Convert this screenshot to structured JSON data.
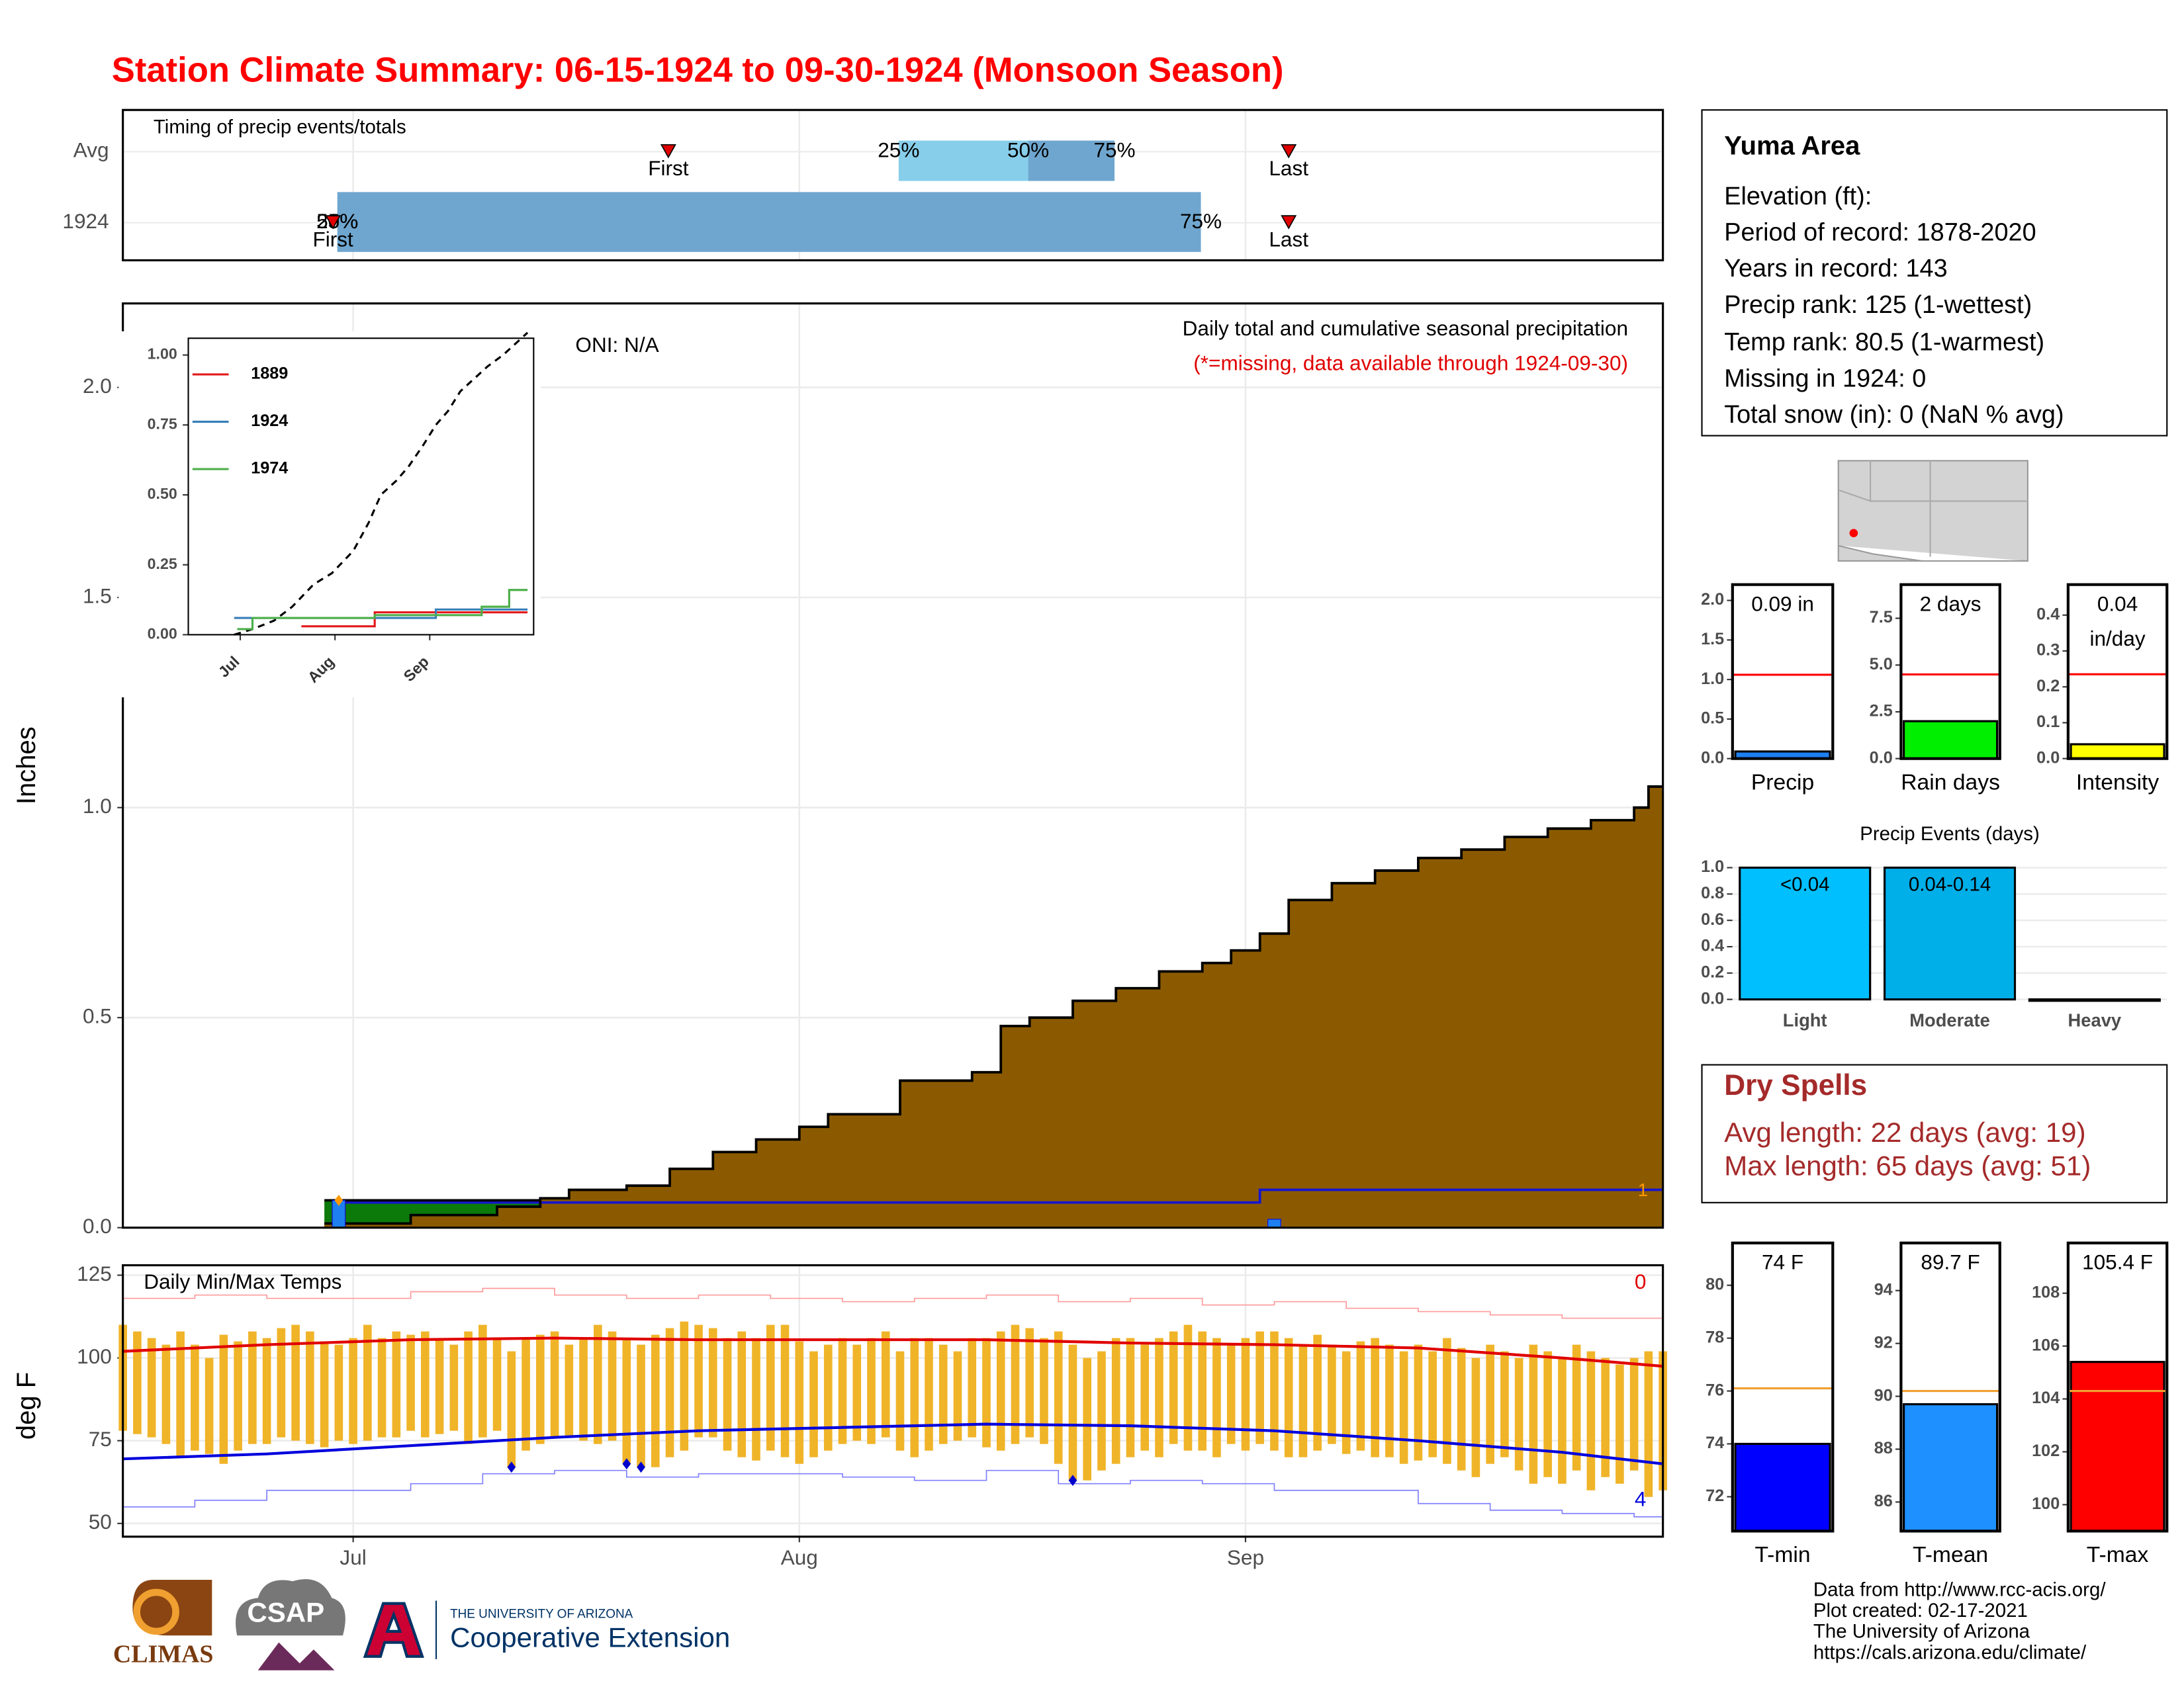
{
  "title": "Station Climate Summary: 06-15-1924 to 09-30-1924 (Monsoon Season)",
  "info": {
    "heading": "Yuma Area",
    "lines": [
      "Elevation (ft):",
      "Period of record: 1878-2020",
      "Years in record: 143",
      "Precip rank: 125 (1-wettest)",
      "Temp rank: 80.5 (1-warmest)",
      "Missing in 1924: 0",
      "Total snow (in): 0 (NaN % avg)"
    ]
  },
  "dry_spells": {
    "title": "Dry Spells",
    "lines": [
      "Avg length: 22 days (avg: 19)",
      "Max length: 65 days (avg: 51)"
    ]
  },
  "footer": {
    "logos": [
      "CLIMAS",
      "CSAP",
      "THE UNIVERSITY OF ARIZONA",
      "Cooperative Extension"
    ],
    "credits": [
      "Data from http://www.rcc-acis.org/",
      "Plot created: 02-17-2021",
      "The University of Arizona",
      "https://cals.arizona.edu/climate/"
    ]
  },
  "chart_data": [
    {
      "type": "range",
      "title": "Timing of precip events/totals",
      "q_labels": [
        "25%",
        "50%",
        "75%"
      ],
      "marker_labels": [
        "First",
        "Last"
      ],
      "colors": [
        "#87ceeb",
        "#6fa6cf"
      ],
      "marker_color": "#e00000",
      "rows": [
        {
          "label": "Avg",
          "q25": 53.9,
          "q50": 62.9,
          "q75": 68.9,
          "first": 37.9,
          "last": 81.0
        },
        {
          "label": "1924",
          "q25": 14.9,
          "q50": 14.9,
          "q75": 74.9,
          "first": 14.6,
          "last": 81.0
        }
      ]
    },
    {
      "type": "step-area",
      "ylabel": "Inches",
      "texts": [
        "ONI: N/A",
        "Daily total and cumulative seasonal precipitation"
      ],
      "note": "(*=missing, data available through 1924-09-30)",
      "note_color": "#e00000",
      "ylim": [
        0,
        2.2
      ],
      "yticks": [
        {
          "value": 0,
          "label": "0.0"
        },
        0.5,
        {
          "value": 1,
          "label": "1.0"
        },
        1.5,
        {
          "value": 2,
          "label": "2.0"
        }
      ],
      "grid": true,
      "series": [
        {
          "x": [
            15,
            79,
            107
          ],
          "values": [
            0.06,
            0.09,
            0.09
          ],
          "color": "#1515d0",
          "fill": "#dcdcdc"
        },
        {
          "x": [
            14,
            29
          ],
          "values": [
            0.065,
            0.065
          ],
          "color": "#000",
          "fill": "#0b7a0b"
        },
        {
          "x": [
            14,
            20,
            26,
            29,
            31,
            35,
            38,
            41,
            44,
            47,
            49,
            54,
            59,
            61,
            63,
            66,
            69,
            72,
            75,
            77,
            79,
            81,
            84,
            87,
            90,
            93,
            96,
            99,
            102,
            105,
            106,
            107
          ],
          "values": [
            0.01,
            0.03,
            0.05,
            0.07,
            0.09,
            0.1,
            0.14,
            0.18,
            0.21,
            0.24,
            0.27,
            0.35,
            0.37,
            0.48,
            0.5,
            0.54,
            0.57,
            0.61,
            0.63,
            0.66,
            0.7,
            0.78,
            0.82,
            0.85,
            0.88,
            0.9,
            0.93,
            0.95,
            0.97,
            1.0,
            1.05,
            1.05
          ],
          "color": "#000",
          "fill": "#8b5a00"
        }
      ],
      "bars": {
        "x": [
          15,
          80
        ],
        "values": [
          0.065,
          0.02
        ],
        "color": "#1e7ff0"
      },
      "points": {
        "x": [
          15
        ],
        "values": [
          0.065
        ],
        "color": "#ff9900"
      },
      "corner_label": {
        "text": "1",
        "color": "#ff9900"
      }
    },
    {
      "type": "line",
      "legend": "top-left",
      "xlim": [
        -1,
        112
      ],
      "xticks": [
        {
          "value": 16,
          "label": "Jul"
        },
        {
          "value": 47,
          "label": "Aug"
        },
        {
          "value": 78,
          "label": "Sep"
        }
      ],
      "ylim": [
        0,
        1.06
      ],
      "yticks": [
        {
          "value": 0,
          "label": "0.00"
        },
        0.25,
        {
          "value": 0.5,
          "label": "0.50"
        },
        0.75,
        {
          "value": 1,
          "label": "1.00"
        }
      ],
      "series": [
        {
          "x": [
            14,
            20,
            27,
            33,
            40,
            46,
            53,
            58,
            62,
            67,
            71,
            76,
            80,
            84,
            88,
            93,
            97,
            102,
            107,
            110
          ],
          "values": [
            0,
            0.02,
            0.05,
            0.1,
            0.18,
            0.22,
            0.3,
            0.4,
            0.5,
            0.55,
            0.6,
            0.68,
            0.75,
            0.8,
            0.87,
            0.92,
            0.96,
            1.0,
            1.05,
            1.08
          ],
          "color": "#000",
          "dash": true,
          "step": false
        },
        {
          "name": "1889",
          "x": [
            36,
            60,
            110
          ],
          "values": [
            0.03,
            0.08,
            0.08
          ],
          "color": "#e41a1c",
          "step": true
        },
        {
          "name": "1924",
          "x": [
            14,
            80,
            110
          ],
          "values": [
            0.06,
            0.09,
            0.09
          ],
          "color": "#377eb8",
          "step": true
        },
        {
          "name": "1974",
          "x": [
            15,
            20,
            60,
            95,
            104,
            110
          ],
          "values": [
            0.02,
            0.06,
            0.07,
            0.1,
            0.16,
            0.16
          ],
          "color": "#4daf4a",
          "step": true
        }
      ]
    },
    {
      "type": "temps",
      "title": "Daily Min/Max Temps",
      "ylabel": "deg F",
      "xlim": [
        0,
        107
      ],
      "xticks": [
        {
          "value": 16,
          "label": "Jul"
        },
        {
          "value": 47,
          "label": "Aug"
        },
        {
          "value": 78,
          "label": "Sep"
        }
      ],
      "ylim": [
        46,
        128
      ],
      "yticks": [
        50,
        75,
        100,
        125
      ],
      "grid": true,
      "x": [
        0,
        1,
        2,
        3,
        4,
        5,
        6,
        7,
        8,
        9,
        10,
        11,
        12,
        13,
        14,
        15,
        16,
        17,
        18,
        19,
        20,
        21,
        22,
        23,
        24,
        25,
        26,
        27,
        28,
        29,
        30,
        31,
        32,
        33,
        34,
        35,
        36,
        37,
        38,
        39,
        40,
        41,
        42,
        43,
        44,
        45,
        46,
        47,
        48,
        49,
        50,
        51,
        52,
        53,
        54,
        55,
        56,
        57,
        58,
        59,
        60,
        61,
        62,
        63,
        64,
        65,
        66,
        67,
        68,
        69,
        70,
        71,
        72,
        73,
        74,
        75,
        76,
        77,
        78,
        79,
        80,
        81,
        82,
        83,
        84,
        85,
        86,
        87,
        88,
        89,
        90,
        91,
        92,
        93,
        94,
        95,
        96,
        97,
        98,
        99,
        100,
        101,
        102,
        103,
        104,
        105,
        106,
        107
      ],
      "bars": {
        "color": "#f0b429",
        "low": [
          78,
          77,
          76,
          74,
          70,
          72,
          71,
          68,
          72,
          74,
          74,
          76,
          75,
          74,
          73,
          75,
          74,
          75,
          76,
          76,
          78,
          76,
          77,
          78,
          74,
          76,
          78,
          67,
          72,
          74,
          76,
          76,
          75,
          74,
          75,
          68,
          67,
          67,
          70,
          72,
          76,
          76,
          72,
          70,
          69,
          72,
          70,
          68,
          70,
          72,
          74,
          75,
          74,
          76,
          72,
          70,
          72,
          74,
          75,
          76,
          73,
          72,
          74,
          76,
          74,
          68,
          63,
          63,
          66,
          68,
          70,
          72,
          70,
          74,
          72,
          72,
          70,
          74,
          72,
          74,
          72,
          70,
          70,
          72,
          74,
          71,
          72,
          70,
          70,
          68,
          69,
          70,
          68,
          66,
          64,
          68,
          70,
          66,
          62,
          64,
          62,
          66,
          60,
          64,
          62,
          66,
          58,
          60
        ],
        "high": [
          110,
          108,
          106,
          104,
          108,
          104,
          100,
          107,
          105,
          108,
          106,
          109,
          110,
          108,
          105,
          104,
          106,
          110,
          106,
          108,
          107,
          108,
          106,
          104,
          108,
          110,
          106,
          102,
          106,
          107,
          108,
          104,
          106,
          110,
          108,
          106,
          104,
          107,
          109,
          111,
          110,
          109,
          106,
          108,
          106,
          110,
          110,
          105,
          102,
          104,
          106,
          104,
          106,
          108,
          102,
          106,
          106,
          104,
          102,
          106,
          106,
          108,
          110,
          109,
          106,
          108,
          104,
          100,
          102,
          106,
          106,
          104,
          106,
          108,
          110,
          108,
          106,
          104,
          106,
          108,
          108,
          106,
          104,
          107,
          104,
          102,
          105,
          106,
          104,
          102,
          104,
          102,
          106,
          103,
          100,
          104,
          102,
          100,
          104,
          102,
          100,
          104,
          102,
          100,
          98,
          100,
          102,
          102
        ]
      },
      "lines": [
        {
          "x": [
            0,
            5,
            10,
            15,
            20,
            25,
            30,
            35,
            40,
            45,
            50,
            55,
            60,
            65,
            70,
            75,
            80,
            85,
            90,
            95,
            100,
            105,
            107
          ],
          "values": [
            118,
            119,
            118,
            118,
            120,
            121,
            119,
            118,
            119,
            118,
            117,
            118,
            119,
            117,
            118,
            116,
            117,
            115,
            114,
            113,
            112,
            112,
            110
          ],
          "color": "#ff9a9a",
          "width": 0.8,
          "step": true
        },
        {
          "x": [
            0,
            5,
            10,
            15,
            20,
            25,
            30,
            35,
            40,
            45,
            50,
            55,
            60,
            65,
            70,
            75,
            80,
            85,
            90,
            95,
            100,
            105,
            107
          ],
          "values": [
            55,
            57,
            60,
            60,
            62,
            65,
            66,
            64,
            65,
            65,
            64,
            63,
            66,
            62,
            63,
            62,
            60,
            60,
            56,
            54,
            53,
            52,
            54
          ],
          "color": "#8080ff",
          "width": 0.8,
          "step": true
        },
        {
          "x": [
            0,
            10,
            20,
            30,
            40,
            50,
            60,
            70,
            80,
            90,
            100,
            107
          ],
          "values": [
            102,
            104,
            105.5,
            106,
            105.5,
            105.5,
            105.5,
            104.5,
            104,
            103,
            100,
            97.5
          ],
          "color": "#e00000",
          "width": 2,
          "step": false
        },
        {
          "x": [
            0,
            10,
            20,
            30,
            40,
            50,
            60,
            70,
            80,
            90,
            100,
            107
          ],
          "values": [
            69.5,
            71,
            73.5,
            76,
            78,
            79,
            80,
            79.5,
            78,
            75,
            71.5,
            68
          ],
          "color": "#0000dd",
          "width": 2,
          "step": false
        }
      ],
      "points": {
        "x": [
          27,
          35,
          36,
          66
        ],
        "values": [
          67,
          68,
          67,
          63
        ],
        "color": "#0000cc"
      },
      "corner_labels": [
        {
          "text": "0",
          "color": "#e00000"
        },
        {
          "text": "4",
          "color": "#0000dd"
        }
      ]
    },
    {
      "type": "bar",
      "xlabel": "Precip",
      "values": [
        0.09
      ],
      "value_labels": [
        "0.09 in"
      ],
      "normal": 1.06,
      "normal_color": "#f00",
      "color": "#1e7ff0",
      "ylim": [
        0,
        2.2
      ],
      "yticks": [
        {
          "value": 0,
          "label": "0.0"
        },
        0.5,
        {
          "value": 1,
          "label": "1.0"
        },
        1.5,
        {
          "value": 2,
          "label": "2.0"
        }
      ]
    },
    {
      "type": "bar",
      "xlabel": "Rain days",
      "values": [
        2
      ],
      "value_labels": [
        "2 days"
      ],
      "normal": 4.5,
      "normal_color": "#f00",
      "color": "#00ee00",
      "ylim": [
        0,
        9.3
      ],
      "yticks": [
        {
          "value": 0,
          "label": "0.0"
        },
        2.5,
        {
          "value": 5,
          "label": "5.0"
        },
        7.5
      ]
    },
    {
      "type": "bar",
      "xlabel": "Intensity",
      "values": [
        0.04
      ],
      "unit": "in/day",
      "normal": 0.235,
      "normal_color": "#f00",
      "color": "#ffff00",
      "ylim": [
        0,
        0.485
      ],
      "yticks": [
        {
          "value": 0,
          "label": "0.0"
        },
        0.1,
        0.2,
        0.3,
        0.4
      ]
    },
    {
      "type": "events",
      "title": "Precip Events (days)",
      "categories": [
        "Light",
        "Moderate",
        "Heavy"
      ],
      "values": [
        1,
        1,
        0
      ],
      "bar_labels": [
        "<0.04",
        "0.04-0.14",
        null
      ],
      "colors": [
        "#00bfff",
        "#00aee8",
        "#00aee8"
      ],
      "ylim": [
        0,
        1.12
      ],
      "yticks": [
        {
          "value": 0,
          "label": "0.0"
        },
        0.2,
        0.4,
        0.6,
        0.8,
        {
          "value": 1,
          "label": "1.0"
        }
      ],
      "grid": true
    },
    {
      "type": "bar",
      "xlabel": "T-min",
      "values": [
        74
      ],
      "value_labels": [
        "74 F"
      ],
      "normal": 76.1,
      "normal_color": "#f0a030",
      "color": "#0000ff",
      "ylim": [
        70.7,
        81.6
      ],
      "yticks": [
        72,
        74,
        76,
        78,
        80
      ]
    },
    {
      "type": "bar",
      "xlabel": "T-mean",
      "values": [
        89.7
      ],
      "value_labels": [
        "89.7 F"
      ],
      "normal": 90.2,
      "normal_color": "#f0a030",
      "color": "#1e90ff",
      "ylim": [
        84.9,
        95.8
      ],
      "yticks": [
        86,
        88,
        90,
        92,
        94
      ]
    },
    {
      "type": "bar",
      "xlabel": "T-max",
      "values": [
        105.4
      ],
      "value_labels": [
        "105.4 F"
      ],
      "normal": 104.3,
      "normal_color": "#f0a030",
      "color": "#ff0000",
      "ylim": [
        99.0,
        109.9
      ],
      "yticks": [
        100,
        102,
        104,
        106,
        108
      ]
    }
  ]
}
